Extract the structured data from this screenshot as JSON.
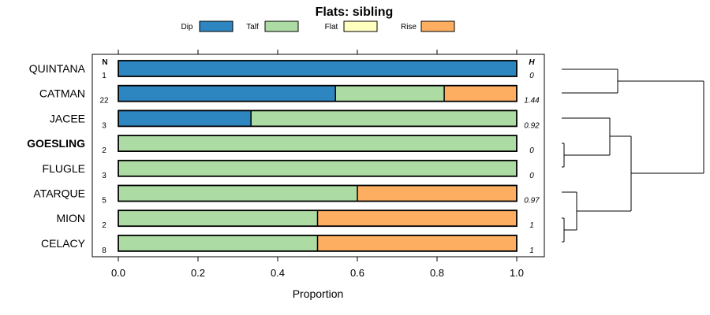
{
  "chart_data": {
    "type": "bar",
    "orientation": "horizontal",
    "stacked": true,
    "title": "Flats: sibling",
    "xlabel": "Proportion",
    "xlim": [
      0,
      1
    ],
    "xticks": [
      "0.0",
      "0.2",
      "0.4",
      "0.6",
      "0.8",
      "1.0"
    ],
    "series": [
      {
        "name": "Dip",
        "color": "#2e86c1"
      },
      {
        "name": "Talf",
        "color": "#acdca3"
      },
      {
        "name": "Flat",
        "color": "#ffffbf"
      },
      {
        "name": "Rise",
        "color": "#fdae61"
      }
    ],
    "n_header": "N",
    "h_header": "H",
    "rows": [
      {
        "label": "QUINTANA",
        "bold": false,
        "n": "1",
        "h": "0",
        "values": [
          1.0,
          0.0,
          0.0,
          0.0
        ]
      },
      {
        "label": "CATMAN",
        "bold": false,
        "n": "22",
        "h": "1.44",
        "values": [
          0.545,
          0.273,
          0.0,
          0.182
        ]
      },
      {
        "label": "JACEE",
        "bold": false,
        "n": "3",
        "h": "0.92",
        "values": [
          0.333,
          0.667,
          0.0,
          0.0
        ]
      },
      {
        "label": "GOESLING",
        "bold": true,
        "n": "2",
        "h": "0",
        "values": [
          0.0,
          1.0,
          0.0,
          0.0
        ]
      },
      {
        "label": "FLUGLE",
        "bold": false,
        "n": "3",
        "h": "0",
        "values": [
          0.0,
          1.0,
          0.0,
          0.0
        ]
      },
      {
        "label": "ATARQUE",
        "bold": false,
        "n": "5",
        "h": "0.97",
        "values": [
          0.0,
          0.6,
          0.0,
          0.4
        ]
      },
      {
        "label": "MION",
        "bold": false,
        "n": "2",
        "h": "1",
        "values": [
          0.0,
          0.5,
          0.0,
          0.5
        ]
      },
      {
        "label": "CELACY",
        "bold": false,
        "n": "8",
        "h": "1",
        "values": [
          0.0,
          0.5,
          0.0,
          0.5
        ]
      }
    ],
    "dendrogram": "hierarchical clustering of rows"
  }
}
